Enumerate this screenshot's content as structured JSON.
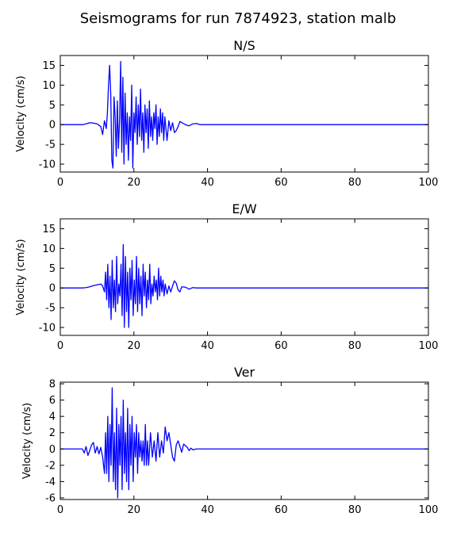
{
  "figure_title": "Seismograms for run 7874923, station malb",
  "chart_data": [
    {
      "type": "line",
      "title": "N/S",
      "ylabel": "Velocity (cm/s)",
      "xlabel": "",
      "xlim": [
        0,
        100
      ],
      "ylim": [
        -12,
        17.5
      ],
      "xticks": [
        0,
        20,
        40,
        60,
        80,
        100
      ],
      "yticks": [
        -10,
        -5,
        0,
        5,
        10,
        15
      ],
      "grid": false,
      "color": "#0000ff",
      "x": [
        0,
        1,
        2,
        3,
        4,
        5,
        6,
        7,
        8,
        9,
        10,
        11,
        11.5,
        12,
        12.5,
        12.8,
        13.1,
        13.4,
        13.7,
        14,
        14.3,
        14.6,
        14.9,
        15.2,
        15.5,
        15.8,
        16.1,
        16.4,
        16.7,
        17,
        17.3,
        17.6,
        17.9,
        18.2,
        18.5,
        18.8,
        19.1,
        19.4,
        19.7,
        20,
        20.3,
        20.6,
        20.9,
        21.2,
        21.5,
        21.8,
        22.1,
        22.4,
        22.7,
        23,
        23.3,
        23.6,
        23.9,
        24.2,
        24.5,
        24.8,
        25.1,
        25.4,
        25.7,
        26,
        26.3,
        26.6,
        26.9,
        27.2,
        27.5,
        27.8,
        28.1,
        28.4,
        28.7,
        29,
        29.5,
        30,
        30.5,
        31,
        31.5,
        32,
        32.5,
        33,
        34,
        35,
        36,
        37,
        38,
        39,
        40,
        42,
        45,
        50,
        60,
        70,
        80,
        90,
        100
      ],
      "y": [
        0,
        0,
        0,
        0,
        0,
        0,
        0,
        0.2,
        0.5,
        0.4,
        0.2,
        -0.5,
        -2.5,
        1,
        -1,
        3,
        10,
        15,
        8,
        -9,
        -11,
        7,
        2,
        -8,
        6,
        -6,
        1,
        16,
        -7,
        12,
        -10,
        8,
        -5,
        3,
        -9,
        2,
        -4,
        10,
        -11,
        3,
        -2,
        7,
        -5,
        5,
        -3,
        9,
        -4,
        3,
        -7,
        5,
        -2,
        4,
        -6,
        6,
        -3,
        2,
        -4,
        3,
        -1,
        5,
        -5,
        2,
        -3,
        4,
        -2,
        3,
        -4,
        2,
        -1,
        -4,
        1,
        -1.5,
        0.5,
        -2,
        -1.5,
        -0.5,
        0.8,
        0.5,
        0,
        -0.3,
        0.2,
        0.3,
        0,
        0,
        0,
        0,
        0,
        0,
        0,
        0,
        0,
        0,
        0
      ]
    },
    {
      "type": "line",
      "title": "E/W",
      "ylabel": "Velocity (cm/s)",
      "xlabel": "",
      "xlim": [
        0,
        100
      ],
      "ylim": [
        -12,
        17.5
      ],
      "xticks": [
        0,
        20,
        40,
        60,
        80,
        100
      ],
      "yticks": [
        -10,
        -5,
        0,
        5,
        10,
        15
      ],
      "grid": false,
      "color": "#0000ff",
      "x": [
        0,
        1,
        2,
        3,
        4,
        5,
        6,
        7,
        8,
        9,
        10,
        11,
        11.5,
        12,
        12.3,
        12.6,
        12.9,
        13.2,
        13.5,
        13.8,
        14.1,
        14.4,
        14.7,
        15,
        15.3,
        15.6,
        15.9,
        16.2,
        16.5,
        16.8,
        17.1,
        17.4,
        17.7,
        18,
        18.3,
        18.6,
        18.9,
        19.2,
        19.5,
        19.8,
        20.1,
        20.4,
        20.7,
        21,
        21.3,
        21.6,
        21.9,
        22.2,
        22.5,
        22.8,
        23.1,
        23.4,
        23.7,
        24,
        24.3,
        24.6,
        24.9,
        25.2,
        25.5,
        25.8,
        26.1,
        26.4,
        26.7,
        27,
        27.3,
        27.6,
        27.9,
        28.2,
        28.5,
        29,
        29.5,
        30,
        30.5,
        31,
        31.5,
        32,
        32.5,
        33,
        34,
        35,
        36,
        37,
        38,
        39,
        40,
        42,
        45,
        50,
        60,
        70,
        80,
        90,
        100
      ],
      "y": [
        0,
        0,
        0,
        0,
        0,
        0,
        0,
        0.1,
        0.3,
        0.6,
        0.8,
        1,
        0.5,
        -1,
        4,
        -3,
        6,
        -5,
        3,
        -8,
        7,
        -5,
        2,
        -6,
        8,
        -4,
        1,
        -2,
        6,
        -7,
        11,
        -10,
        8,
        -6,
        4,
        -10,
        5,
        -3,
        7,
        -7,
        2,
        -4,
        8,
        -6,
        5,
        -4,
        3,
        -7,
        6,
        -2,
        4,
        -5,
        2,
        -3,
        6,
        -4,
        1,
        -2,
        3,
        -1,
        2,
        -3,
        5,
        -2,
        3,
        -1,
        2,
        -2,
        1,
        -1.5,
        0.5,
        -1,
        0.5,
        1.8,
        1.2,
        -0.5,
        -1,
        0.3,
        0.2,
        -0.3,
        0.1,
        0,
        0,
        0,
        0,
        0,
        0,
        0,
        0,
        0,
        0,
        0,
        0
      ]
    },
    {
      "type": "line",
      "title": "Ver",
      "ylabel": "Velocity (cm/s)",
      "xlabel": "",
      "xlim": [
        0,
        100
      ],
      "ylim": [
        -6.2,
        8.2
      ],
      "xticks": [
        0,
        20,
        40,
        60,
        80,
        100
      ],
      "yticks": [
        -6,
        -4,
        -2,
        0,
        2,
        4,
        6,
        8
      ],
      "grid": false,
      "color": "#0000ff",
      "x": [
        0,
        1,
        2,
        3,
        4,
        5,
        6,
        6.5,
        7,
        7.5,
        8,
        8.5,
        9,
        9.5,
        10,
        10.5,
        11,
        11.5,
        12,
        12.3,
        12.6,
        12.9,
        13.2,
        13.5,
        13.8,
        14.1,
        14.4,
        14.7,
        15,
        15.3,
        15.6,
        15.9,
        16.2,
        16.5,
        16.8,
        17.1,
        17.4,
        17.7,
        18,
        18.3,
        18.6,
        18.9,
        19.2,
        19.5,
        19.8,
        20.1,
        20.4,
        20.7,
        21,
        21.3,
        21.6,
        21.9,
        22.2,
        22.5,
        22.8,
        23.1,
        23.4,
        23.7,
        24,
        24.5,
        25,
        25.5,
        26,
        26.5,
        27,
        27.5,
        28,
        28.5,
        29,
        29.5,
        30,
        30.5,
        31,
        31.5,
        32,
        32.5,
        33,
        33.5,
        34,
        34.5,
        35,
        35.5,
        36,
        37,
        38,
        39,
        40,
        41,
        42,
        44,
        46,
        50,
        60,
        70,
        80,
        90,
        100
      ],
      "y": [
        0,
        0,
        0,
        0,
        0,
        0,
        0,
        -0.5,
        0.3,
        -0.8,
        -0.2,
        0.5,
        0.8,
        -0.5,
        0.3,
        -0.6,
        0.2,
        -1,
        -3,
        2,
        -3,
        4,
        -4,
        3,
        -2,
        7.5,
        -4,
        2,
        -5,
        5,
        -6,
        3,
        -2,
        4,
        -5,
        6,
        -3,
        2,
        -4,
        5,
        -5,
        3,
        -2,
        4,
        -4,
        2,
        -1,
        3,
        -3,
        2,
        -1,
        1,
        -1.5,
        1,
        -2,
        3,
        -2,
        1,
        -2,
        2,
        -1,
        1,
        -1.5,
        2,
        -1,
        1,
        -0.5,
        2.7,
        1,
        2,
        0.5,
        -1,
        -1.5,
        0.5,
        1,
        0.3,
        -0.4,
        0.6,
        0.4,
        0.2,
        -0.2,
        0.1,
        -0.1,
        0,
        0,
        0,
        0,
        0,
        0,
        0,
        0,
        0,
        0,
        0,
        0,
        0,
        0
      ]
    }
  ]
}
